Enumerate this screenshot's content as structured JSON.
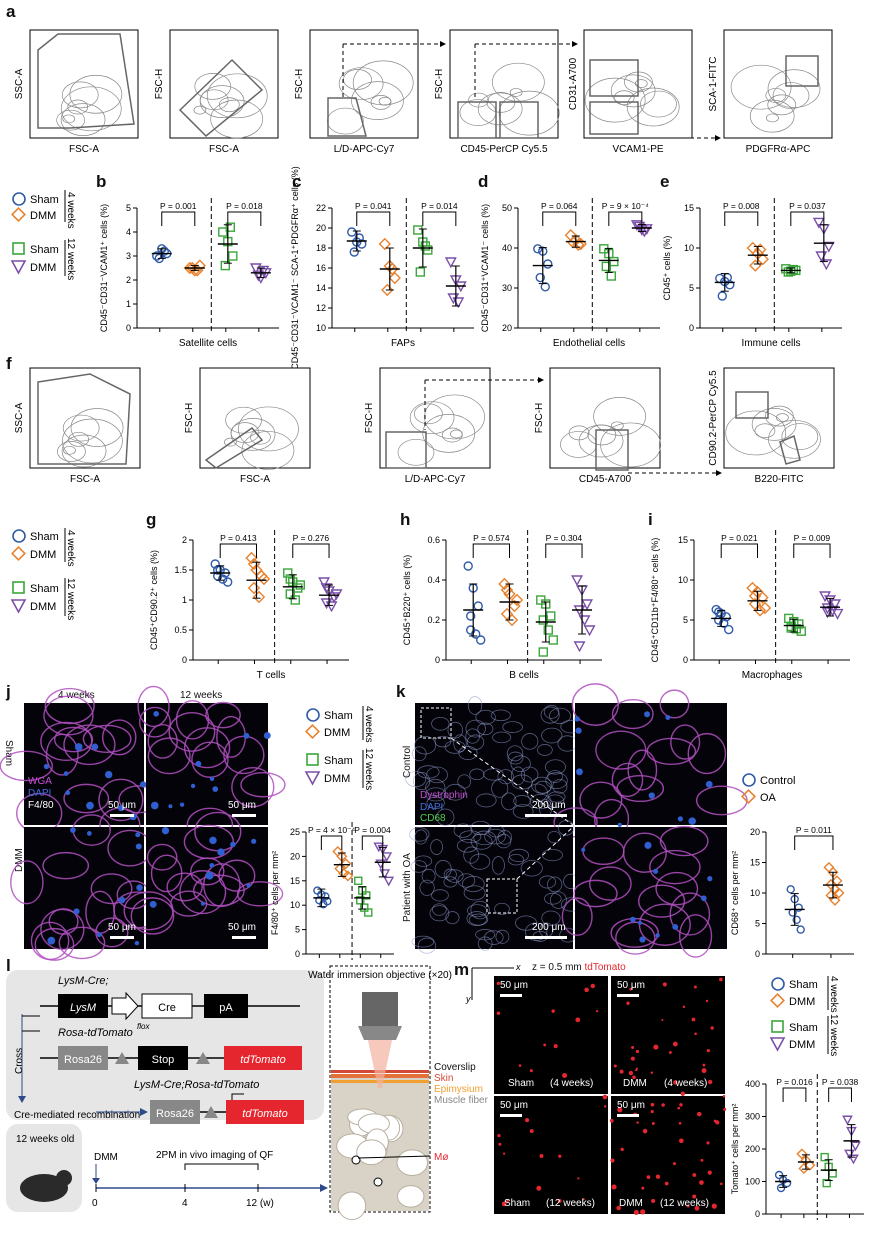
{
  "panel_letters": {
    "a": "a",
    "b": "b",
    "c": "c",
    "d": "d",
    "e": "e",
    "f": "f",
    "g": "g",
    "h": "h",
    "i": "i",
    "j": "j",
    "k": "k",
    "l": "l",
    "m": "m"
  },
  "legend_main": {
    "sham": "Sham",
    "dmm": "DMM",
    "w4": "4 weeks",
    "w12": "12 weeks"
  },
  "flow_a": {
    "plots": [
      {
        "y": "SSC-A",
        "x": "FSC-A"
      },
      {
        "y": "FSC-H",
        "x": "FSC-A"
      },
      {
        "y": "FSC-H",
        "x": "L/D-APC-Cy7"
      },
      {
        "y": "FSC-H",
        "x": "CD45-PerCP Cy5.5"
      },
      {
        "y": "CD31-A700",
        "x": "VCAM1-PE"
      },
      {
        "y": "SCA-1-FITC",
        "x": "PDGFRα-APC"
      }
    ]
  },
  "flow_f": {
    "plots": [
      {
        "y": "SSC-A",
        "x": "FSC-A"
      },
      {
        "y": "FSC-H",
        "x": "FSC-A"
      },
      {
        "y": "FSC-H",
        "x": "L/D-APC-Cy7"
      },
      {
        "y": "FSC-H",
        "x": "CD45-A700"
      },
      {
        "y": "CD90.2-PerCP Cy5.5",
        "x": "B220-FITC"
      }
    ]
  },
  "colors": {
    "sham4": "#2f5aa8",
    "dmm4": "#e8822e",
    "sham12": "#3aa63a",
    "dmm12": "#7a4fa8",
    "tomato": "#e6262e"
  },
  "chart_data": [
    {
      "id": "b",
      "type": "scatter",
      "xlabel": "Satellite cells",
      "ylabel": "CD45⁻CD31⁻VCAM1⁺ cells (%)",
      "ylim": [
        0,
        5
      ],
      "yticks": [
        0,
        1,
        2,
        3,
        4,
        5
      ],
      "pvalues": [
        "P = 0.001",
        "P = 0.018"
      ],
      "series": [
        {
          "name": "Sham",
          "group": "4 weeks",
          "mean": 3.1,
          "sd": 0.2,
          "values": [
            3.0,
            3.3,
            3.1,
            2.9,
            3.2
          ]
        },
        {
          "name": "DMM",
          "group": "4 weeks",
          "mean": 2.5,
          "sd": 0.1,
          "values": [
            2.5,
            2.4,
            2.6,
            2.5,
            2.4
          ]
        },
        {
          "name": "Sham",
          "group": "12 weeks",
          "mean": 3.5,
          "sd": 0.8,
          "values": [
            4.0,
            3.6,
            3.0,
            2.6,
            4.2
          ]
        },
        {
          "name": "DMM",
          "group": "12 weeks",
          "mean": 2.3,
          "sd": 0.2,
          "values": [
            2.5,
            2.1,
            2.3,
            2.2,
            2.4
          ]
        }
      ]
    },
    {
      "id": "c",
      "type": "scatter",
      "xlabel": "FAPs",
      "ylabel": "CD45⁻CD31⁻VCAM1⁻ SCA-1⁺PDGFRα⁺ cells (%)",
      "ylim": [
        10,
        22
      ],
      "yticks": [
        10,
        12,
        14,
        16,
        18,
        20,
        22
      ],
      "pvalues": [
        "P = 0.041",
        "P = 0.014"
      ],
      "series": [
        {
          "name": "Sham",
          "group": "4 weeks",
          "mean": 18.7,
          "sd": 1.0,
          "values": [
            19.6,
            18.6,
            18.4,
            17.6,
            19.0
          ]
        },
        {
          "name": "DMM",
          "group": "4 weeks",
          "mean": 15.9,
          "sd": 2.1,
          "values": [
            18.4,
            16.2,
            15.0,
            13.8,
            15.9
          ]
        },
        {
          "name": "Sham",
          "group": "12 weeks",
          "mean": 18.0,
          "sd": 1.9,
          "values": [
            19.8,
            18.6,
            17.8,
            15.6,
            18.2
          ]
        },
        {
          "name": "DMM",
          "group": "12 weeks",
          "mean": 14.2,
          "sd": 2.0,
          "values": [
            16.6,
            14.8,
            14.2,
            13.0,
            12.6
          ]
        }
      ]
    },
    {
      "id": "d",
      "type": "scatter",
      "xlabel": "Endothelial cells",
      "ylabel": "CD45⁻CD31⁺VCAM1⁻ cells (%)",
      "ylim": [
        20,
        50
      ],
      "yticks": [
        20,
        30,
        40,
        50
      ],
      "pvalues": [
        "P = 0.064",
        "P = 9 × 10⁻⁴"
      ],
      "series": [
        {
          "name": "Sham",
          "group": "4 weeks",
          "mean": 35.6,
          "sd": 4.5,
          "values": [
            39.8,
            39.2,
            36.0,
            32.6,
            30.3
          ]
        },
        {
          "name": "DMM",
          "group": "4 weeks",
          "mean": 41.6,
          "sd": 1.4,
          "values": [
            43.2,
            42.0,
            41.0,
            41.4,
            40.8
          ]
        },
        {
          "name": "Sham",
          "group": "12 weeks",
          "mean": 36.9,
          "sd": 3.0,
          "values": [
            39.8,
            38.6,
            36.6,
            35.4,
            33.0
          ]
        },
        {
          "name": "DMM",
          "group": "12 weeks",
          "mean": 45.0,
          "sd": 0.9,
          "values": [
            45.8,
            44.6,
            44.8,
            45.4,
            44.2
          ]
        }
      ]
    },
    {
      "id": "e",
      "type": "scatter",
      "xlabel": "Immune cells",
      "ylabel": "CD45⁺ cells (%)",
      "ylim": [
        0,
        15
      ],
      "yticks": [
        0,
        5,
        10,
        15
      ],
      "pvalues": [
        "P = 0.008",
        "P = 0.037"
      ],
      "series": [
        {
          "name": "Sham",
          "group": "4 weeks",
          "mean": 5.7,
          "sd": 1.1,
          "values": [
            6.2,
            5.8,
            5.4,
            4.0,
            6.3
          ]
        },
        {
          "name": "DMM",
          "group": "4 weeks",
          "mean": 9.1,
          "sd": 1.1,
          "values": [
            10.0,
            9.3,
            8.6,
            7.8,
            9.8
          ]
        },
        {
          "name": "Sham",
          "group": "12 weeks",
          "mean": 7.2,
          "sd": 0.3,
          "values": [
            7.4,
            7.1,
            7.2,
            7.0,
            7.3
          ]
        },
        {
          "name": "DMM",
          "group": "12 weeks",
          "mean": 10.6,
          "sd": 2.3,
          "values": [
            13.2,
            12.4,
            10.2,
            9.0,
            8.0
          ]
        }
      ]
    },
    {
      "id": "g",
      "type": "scatter",
      "xlabel": "T cells",
      "ylabel": "CD45⁺CD90.2⁺ cells (%)",
      "ylim": [
        0,
        2.0
      ],
      "yticks": [
        0,
        0.5,
        1.0,
        1.5,
        2.0
      ],
      "pvalues": [
        "P = 0.413",
        "P = 0.276"
      ],
      "series": [
        {
          "name": "Sham",
          "group": "4 weeks",
          "mean": 1.45,
          "sd": 0.12,
          "values": [
            1.6,
            1.5,
            1.45,
            1.4,
            1.35,
            1.3,
            1.5
          ]
        },
        {
          "name": "DMM",
          "group": "4 weeks",
          "mean": 1.33,
          "sd": 0.3,
          "values": [
            1.7,
            1.5,
            1.4,
            1.2,
            1.05,
            1.35,
            1.6
          ]
        },
        {
          "name": "Sham",
          "group": "12 weeks",
          "mean": 1.22,
          "sd": 0.2,
          "values": [
            1.45,
            1.3,
            1.2,
            1.1,
            1.0,
            1.25,
            1.35
          ]
        },
        {
          "name": "DMM",
          "group": "12 weeks",
          "mean": 1.08,
          "sd": 0.17,
          "values": [
            1.3,
            1.15,
            1.05,
            0.95,
            0.9,
            1.1,
            1.2
          ]
        }
      ]
    },
    {
      "id": "h",
      "type": "scatter",
      "xlabel": "B cells",
      "ylabel": "CD45⁺B220⁺ cells (%)",
      "ylim": [
        0,
        0.6
      ],
      "yticks": [
        0,
        0.2,
        0.4,
        0.6
      ],
      "pvalues": [
        "P = 0.574",
        "P = 0.304"
      ],
      "series": [
        {
          "name": "Sham",
          "group": "4 weeks",
          "mean": 0.25,
          "sd": 0.13,
          "values": [
            0.47,
            0.36,
            0.27,
            0.22,
            0.13,
            0.1,
            0.15
          ]
        },
        {
          "name": "DMM",
          "group": "4 weeks",
          "mean": 0.29,
          "sd": 0.09,
          "values": [
            0.38,
            0.33,
            0.27,
            0.23,
            0.2,
            0.3,
            0.35
          ]
        },
        {
          "name": "Sham",
          "group": "12 weeks",
          "mean": 0.19,
          "sd": 0.1,
          "values": [
            0.3,
            0.28,
            0.22,
            0.2,
            0.15,
            0.1,
            0.04
          ]
        },
        {
          "name": "DMM",
          "group": "12 weeks",
          "mean": 0.25,
          "sd": 0.12,
          "values": [
            0.4,
            0.35,
            0.28,
            0.25,
            0.2,
            0.15,
            0.07
          ]
        }
      ]
    },
    {
      "id": "i",
      "type": "scatter",
      "xlabel": "Macrophages",
      "ylabel": "CD45⁺CD11b⁺F4/80⁺ cells (%)",
      "ylim": [
        0,
        15
      ],
      "yticks": [
        0,
        5,
        10,
        15
      ],
      "pvalues": [
        "P = 0.021",
        "P = 0.009"
      ],
      "series": [
        {
          "name": "Sham",
          "group": "4 weeks",
          "mean": 5.2,
          "sd": 1.0,
          "values": [
            6.3,
            5.8,
            5.4,
            5.0,
            4.6,
            3.8,
            6.0
          ]
        },
        {
          "name": "DMM",
          "group": "4 weeks",
          "mean": 7.4,
          "sd": 1.2,
          "values": [
            9.0,
            8.5,
            7.8,
            7.0,
            6.2,
            6.5,
            8.0
          ]
        },
        {
          "name": "Sham",
          "group": "12 weeks",
          "mean": 4.3,
          "sd": 0.8,
          "values": [
            5.2,
            4.8,
            4.5,
            4.2,
            3.9,
            3.6,
            4.0
          ]
        },
        {
          "name": "DMM",
          "group": "12 weeks",
          "mean": 6.6,
          "sd": 1.1,
          "values": [
            8.0,
            7.5,
            7.0,
            6.5,
            6.2,
            5.8,
            6.0
          ]
        }
      ]
    },
    {
      "id": "j",
      "type": "scatter",
      "xlabel": "",
      "ylabel": "F4/80⁺ cells per mm²",
      "ylim": [
        0,
        25
      ],
      "yticks": [
        0,
        5,
        10,
        15,
        20,
        25
      ],
      "pvalues": [
        "P = 4 × 10⁻⁴",
        "P = 0.004"
      ],
      "series": [
        {
          "name": "Sham",
          "group": "4 weeks",
          "mean": 11.5,
          "sd": 1.8,
          "values": [
            13.0,
            12.2,
            11.8,
            11.0,
            10.2,
            10.8
          ]
        },
        {
          "name": "DMM",
          "group": "4 weeks",
          "mean": 18.3,
          "sd": 2.4,
          "values": [
            21.0,
            20.0,
            18.5,
            17.5,
            16.5,
            16.0
          ]
        },
        {
          "name": "Sham",
          "group": "12 weeks",
          "mean": 11.5,
          "sd": 2.3,
          "values": [
            15.0,
            13.0,
            12.0,
            11.0,
            9.5,
            8.5
          ]
        },
        {
          "name": "DMM",
          "group": "12 weeks",
          "mean": 18.8,
          "sd": 3.0,
          "values": [
            22.0,
            21.5,
            20.0,
            18.5,
            16.5,
            15.0
          ]
        }
      ]
    },
    {
      "id": "k",
      "type": "scatter",
      "xlabel": "",
      "ylabel": "CD68⁺ cells per mm²",
      "ylim": [
        0,
        20
      ],
      "yticks": [
        0,
        5,
        10,
        15,
        20
      ],
      "pvalues": [
        "P = 0.011"
      ],
      "series": [
        {
          "name": "Control",
          "group": "",
          "mean": 7.3,
          "sd": 2.6,
          "values": [
            10.6,
            9.0,
            7.6,
            6.8,
            5.6,
            4.0
          ]
        },
        {
          "name": "OA",
          "group": "",
          "mean": 11.3,
          "sd": 2.1,
          "values": [
            14.2,
            13.4,
            12.0,
            11.4,
            10.6,
            10.0,
            9.6,
            8.8
          ]
        }
      ]
    },
    {
      "id": "m",
      "type": "scatter",
      "xlabel": "",
      "ylabel": "Tomato⁺ cells per mm²",
      "ylim": [
        0,
        400
      ],
      "yticks": [
        0,
        100,
        200,
        300,
        400
      ],
      "pvalues": [
        "P = 0.016",
        "P = 0.038"
      ],
      "series": [
        {
          "name": "Sham",
          "group": "4 weeks",
          "mean": 100,
          "sd": 18,
          "values": [
            120,
            105,
            95,
            80
          ]
        },
        {
          "name": "DMM",
          "group": "4 weeks",
          "mean": 160,
          "sd": 22,
          "values": [
            185,
            165,
            150,
            140
          ]
        },
        {
          "name": "Sham",
          "group": "12 weeks",
          "mean": 135,
          "sd": 32,
          "values": [
            175,
            145,
            125,
            95
          ]
        },
        {
          "name": "DMM",
          "group": "12 weeks",
          "mean": 225,
          "sd": 50,
          "values": [
            290,
            255,
            210,
            185,
            170
          ]
        }
      ]
    }
  ],
  "panel_j": {
    "col1": "4 weeks",
    "col2": "12 weeks",
    "row1": "Sham",
    "row2": "DMM",
    "stain1": "WGA",
    "stain2": "DAPI",
    "stain3": "F4/80",
    "scale": "50 μm"
  },
  "panel_k": {
    "row1": "Control",
    "row2": "Patient with OA",
    "stain1": "Dystrophin",
    "stain2": "DAPI",
    "stain3": "CD68",
    "scale": "200 μm",
    "leg1": "Control",
    "leg2": "OA"
  },
  "panel_l": {
    "lysm_cre": "LysM-Cre;",
    "lysm": "LysM",
    "cre": "Cre",
    "pa": "pA",
    "cross": "Cross",
    "rosa_flox": "Rosa-tdTomato",
    "flox_sup": "flox",
    "rosa26": "Rosa26",
    "stop": "Stop",
    "tdtomato": "tdTomato",
    "cre_mediated": "Cre-mediated recombination",
    "result": "LysM-Cre;Rosa-tdTomato",
    "age": "12 weeks old",
    "dmm": "DMM",
    "imaging": "2PM in vivo imaging of QF",
    "t0": "0",
    "t4": "4",
    "t12": "12 (w)",
    "objective": "Water immersion objective (×20)",
    "coverslip": "Coverslip",
    "skin": "Skin",
    "epimysium": "Epimysium",
    "muscle": "Muscle fiber",
    "mphi": "Mø"
  },
  "panel_m": {
    "z": "z = 0.5 mm",
    "tdtomato": "tdTomato",
    "x": "x",
    "y": "y",
    "scale": "50 μm",
    "labels": [
      "Sham",
      "(4 weeks)",
      "DMM",
      "(4 weeks)",
      "Sham",
      "(12 weeks)",
      "DMM",
      "(12 weeks)"
    ]
  }
}
